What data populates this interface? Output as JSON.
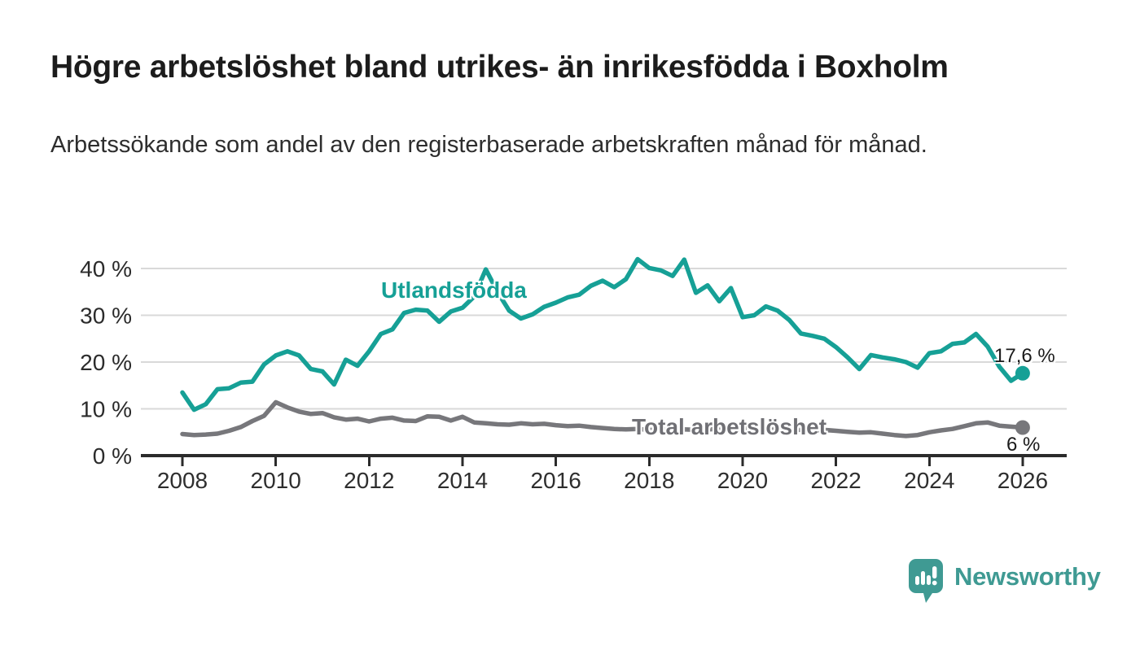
{
  "header": {
    "title": "Högre arbetslöshet bland utrikes- än inrikesfödda i Boxholm",
    "subtitle": "Arbetssökande som andel av den registerbaserade arbetskraften månad för månad."
  },
  "chart_data": {
    "type": "line",
    "title": "Högre arbetslöshet bland utrikes- än inrikesfödda i Boxholm",
    "xlabel": "",
    "ylabel": "",
    "x_range": [
      2008,
      2026
    ],
    "ylim": [
      0,
      44
    ],
    "grid": "horizontal",
    "legend_position": "inline-labels",
    "x_ticks": [
      {
        "v": 2008,
        "label": "2008"
      },
      {
        "v": 2010,
        "label": "2010"
      },
      {
        "v": 2012,
        "label": "2012"
      },
      {
        "v": 2014,
        "label": "2014"
      },
      {
        "v": 2016,
        "label": "2016"
      },
      {
        "v": 2018,
        "label": "2018"
      },
      {
        "v": 2020,
        "label": "2020"
      },
      {
        "v": 2022,
        "label": "2022"
      },
      {
        "v": 2024,
        "label": "2024"
      },
      {
        "v": 2026,
        "label": "2026"
      }
    ],
    "y_ticks": [
      {
        "v": 0,
        "label": "0 %"
      },
      {
        "v": 10,
        "label": "10 %"
      },
      {
        "v": 20,
        "label": "20 %"
      },
      {
        "v": 30,
        "label": "30 %"
      },
      {
        "v": 40,
        "label": "40 %"
      }
    ],
    "series": [
      {
        "name": "Utlandsfödda",
        "color": "#16a096",
        "end_label": "17,6 %",
        "end_value": 17.6,
        "points": [
          [
            2008,
            13.5
          ],
          [
            2008.25,
            9.8
          ],
          [
            2008.5,
            11
          ],
          [
            2008.75,
            14.2
          ],
          [
            2009,
            14.4
          ],
          [
            2009.25,
            15.6
          ],
          [
            2009.5,
            15.8
          ],
          [
            2009.75,
            19.5
          ],
          [
            2010,
            21.4
          ],
          [
            2010.25,
            22.3
          ],
          [
            2010.5,
            21.4
          ],
          [
            2010.75,
            18.5
          ],
          [
            2011,
            18
          ],
          [
            2011.25,
            15.2
          ],
          [
            2011.5,
            20.5
          ],
          [
            2011.75,
            19.2
          ],
          [
            2012,
            22.3
          ],
          [
            2012.25,
            26
          ],
          [
            2012.5,
            27
          ],
          [
            2012.75,
            30.5
          ],
          [
            2013,
            31.2
          ],
          [
            2013.25,
            31
          ],
          [
            2013.5,
            28.6
          ],
          [
            2013.75,
            30.8
          ],
          [
            2014,
            31.6
          ],
          [
            2014.25,
            34
          ],
          [
            2014.5,
            39.8
          ],
          [
            2014.75,
            35
          ],
          [
            2015,
            31
          ],
          [
            2015.25,
            29.3
          ],
          [
            2015.5,
            30.2
          ],
          [
            2015.75,
            31.8
          ],
          [
            2016,
            32.7
          ],
          [
            2016.25,
            33.8
          ],
          [
            2016.5,
            34.4
          ],
          [
            2016.75,
            36.3
          ],
          [
            2017,
            37.4
          ],
          [
            2017.25,
            36
          ],
          [
            2017.5,
            37.7
          ],
          [
            2017.75,
            42
          ],
          [
            2018,
            40.1
          ],
          [
            2018.25,
            39.6
          ],
          [
            2018.5,
            38.4
          ],
          [
            2018.75,
            41.9
          ],
          [
            2019,
            34.8
          ],
          [
            2019.25,
            36.4
          ],
          [
            2019.5,
            33
          ],
          [
            2019.75,
            35.8
          ],
          [
            2020,
            29.6
          ],
          [
            2020.25,
            30
          ],
          [
            2020.5,
            31.9
          ],
          [
            2020.75,
            31
          ],
          [
            2021,
            29
          ],
          [
            2021.25,
            26.1
          ],
          [
            2021.5,
            25.6
          ],
          [
            2021.75,
            25
          ],
          [
            2022,
            23.2
          ],
          [
            2022.25,
            21
          ],
          [
            2022.5,
            18.5
          ],
          [
            2022.75,
            21.5
          ],
          [
            2023,
            21
          ],
          [
            2023.25,
            20.6
          ],
          [
            2023.5,
            20
          ],
          [
            2023.75,
            18.8
          ],
          [
            2024,
            21.9
          ],
          [
            2024.25,
            22.3
          ],
          [
            2024.5,
            23.9
          ],
          [
            2024.75,
            24.2
          ],
          [
            2025,
            26
          ],
          [
            2025.25,
            23.3
          ],
          [
            2025.5,
            19
          ],
          [
            2025.75,
            16
          ],
          [
            2026,
            17.6
          ]
        ]
      },
      {
        "name": "Total arbetslöshet",
        "color": "#77777b",
        "end_label": "6 %",
        "end_value": 6.0,
        "points": [
          [
            2008,
            4.6
          ],
          [
            2008.25,
            4.4
          ],
          [
            2008.5,
            4.5
          ],
          [
            2008.75,
            4.7
          ],
          [
            2009,
            5.3
          ],
          [
            2009.25,
            6.1
          ],
          [
            2009.5,
            7.4
          ],
          [
            2009.75,
            8.5
          ],
          [
            2010,
            11.4
          ],
          [
            2010.25,
            10.3
          ],
          [
            2010.5,
            9.4
          ],
          [
            2010.75,
            8.9
          ],
          [
            2011,
            9.1
          ],
          [
            2011.25,
            8.2
          ],
          [
            2011.5,
            7.7
          ],
          [
            2011.75,
            7.9
          ],
          [
            2012,
            7.3
          ],
          [
            2012.25,
            7.9
          ],
          [
            2012.5,
            8.1
          ],
          [
            2012.75,
            7.5
          ],
          [
            2013,
            7.4
          ],
          [
            2013.25,
            8.4
          ],
          [
            2013.5,
            8.3
          ],
          [
            2013.75,
            7.5
          ],
          [
            2014,
            8.3
          ],
          [
            2014.25,
            7.1
          ],
          [
            2014.5,
            6.9
          ],
          [
            2014.75,
            6.7
          ],
          [
            2015,
            6.6
          ],
          [
            2015.25,
            6.9
          ],
          [
            2015.5,
            6.7
          ],
          [
            2015.75,
            6.8
          ],
          [
            2016,
            6.5
          ],
          [
            2016.25,
            6.3
          ],
          [
            2016.5,
            6.4
          ],
          [
            2016.75,
            6.1
          ],
          [
            2017,
            5.9
          ],
          [
            2017.25,
            5.7
          ],
          [
            2017.5,
            5.6
          ],
          [
            2017.75,
            5.7
          ],
          [
            2018,
            5.5
          ],
          [
            2018.25,
            5.6
          ],
          [
            2018.5,
            5.4
          ],
          [
            2018.75,
            5.6
          ],
          [
            2019,
            5.5
          ],
          [
            2019.25,
            5.6
          ],
          [
            2019.5,
            5.7
          ],
          [
            2019.75,
            5.6
          ],
          [
            2020,
            5.7
          ],
          [
            2020.25,
            5.9
          ],
          [
            2020.5,
            5.8
          ],
          [
            2020.75,
            5.7
          ],
          [
            2021,
            5.6
          ],
          [
            2021.25,
            5.5
          ],
          [
            2021.5,
            5.4
          ],
          [
            2021.75,
            5.5
          ],
          [
            2022,
            5.3
          ],
          [
            2022.25,
            5.1
          ],
          [
            2022.5,
            4.9
          ],
          [
            2022.75,
            5
          ],
          [
            2023,
            4.7
          ],
          [
            2023.25,
            4.4
          ],
          [
            2023.5,
            4.2
          ],
          [
            2023.75,
            4.4
          ],
          [
            2024,
            5
          ],
          [
            2024.25,
            5.4
          ],
          [
            2024.5,
            5.7
          ],
          [
            2024.75,
            6.3
          ],
          [
            2025,
            6.9
          ],
          [
            2025.25,
            7.1
          ],
          [
            2025.5,
            6.4
          ],
          [
            2025.75,
            6.2
          ],
          [
            2026,
            6
          ]
        ]
      }
    ],
    "colors": {
      "accent_teal": "#16a096",
      "line_gray": "#77777b",
      "gridline": "#d9d9d9",
      "axis": "#2b2b2b",
      "logo_teal": "#3f9a93"
    }
  },
  "footer": {
    "brand": "Newsworthy"
  }
}
